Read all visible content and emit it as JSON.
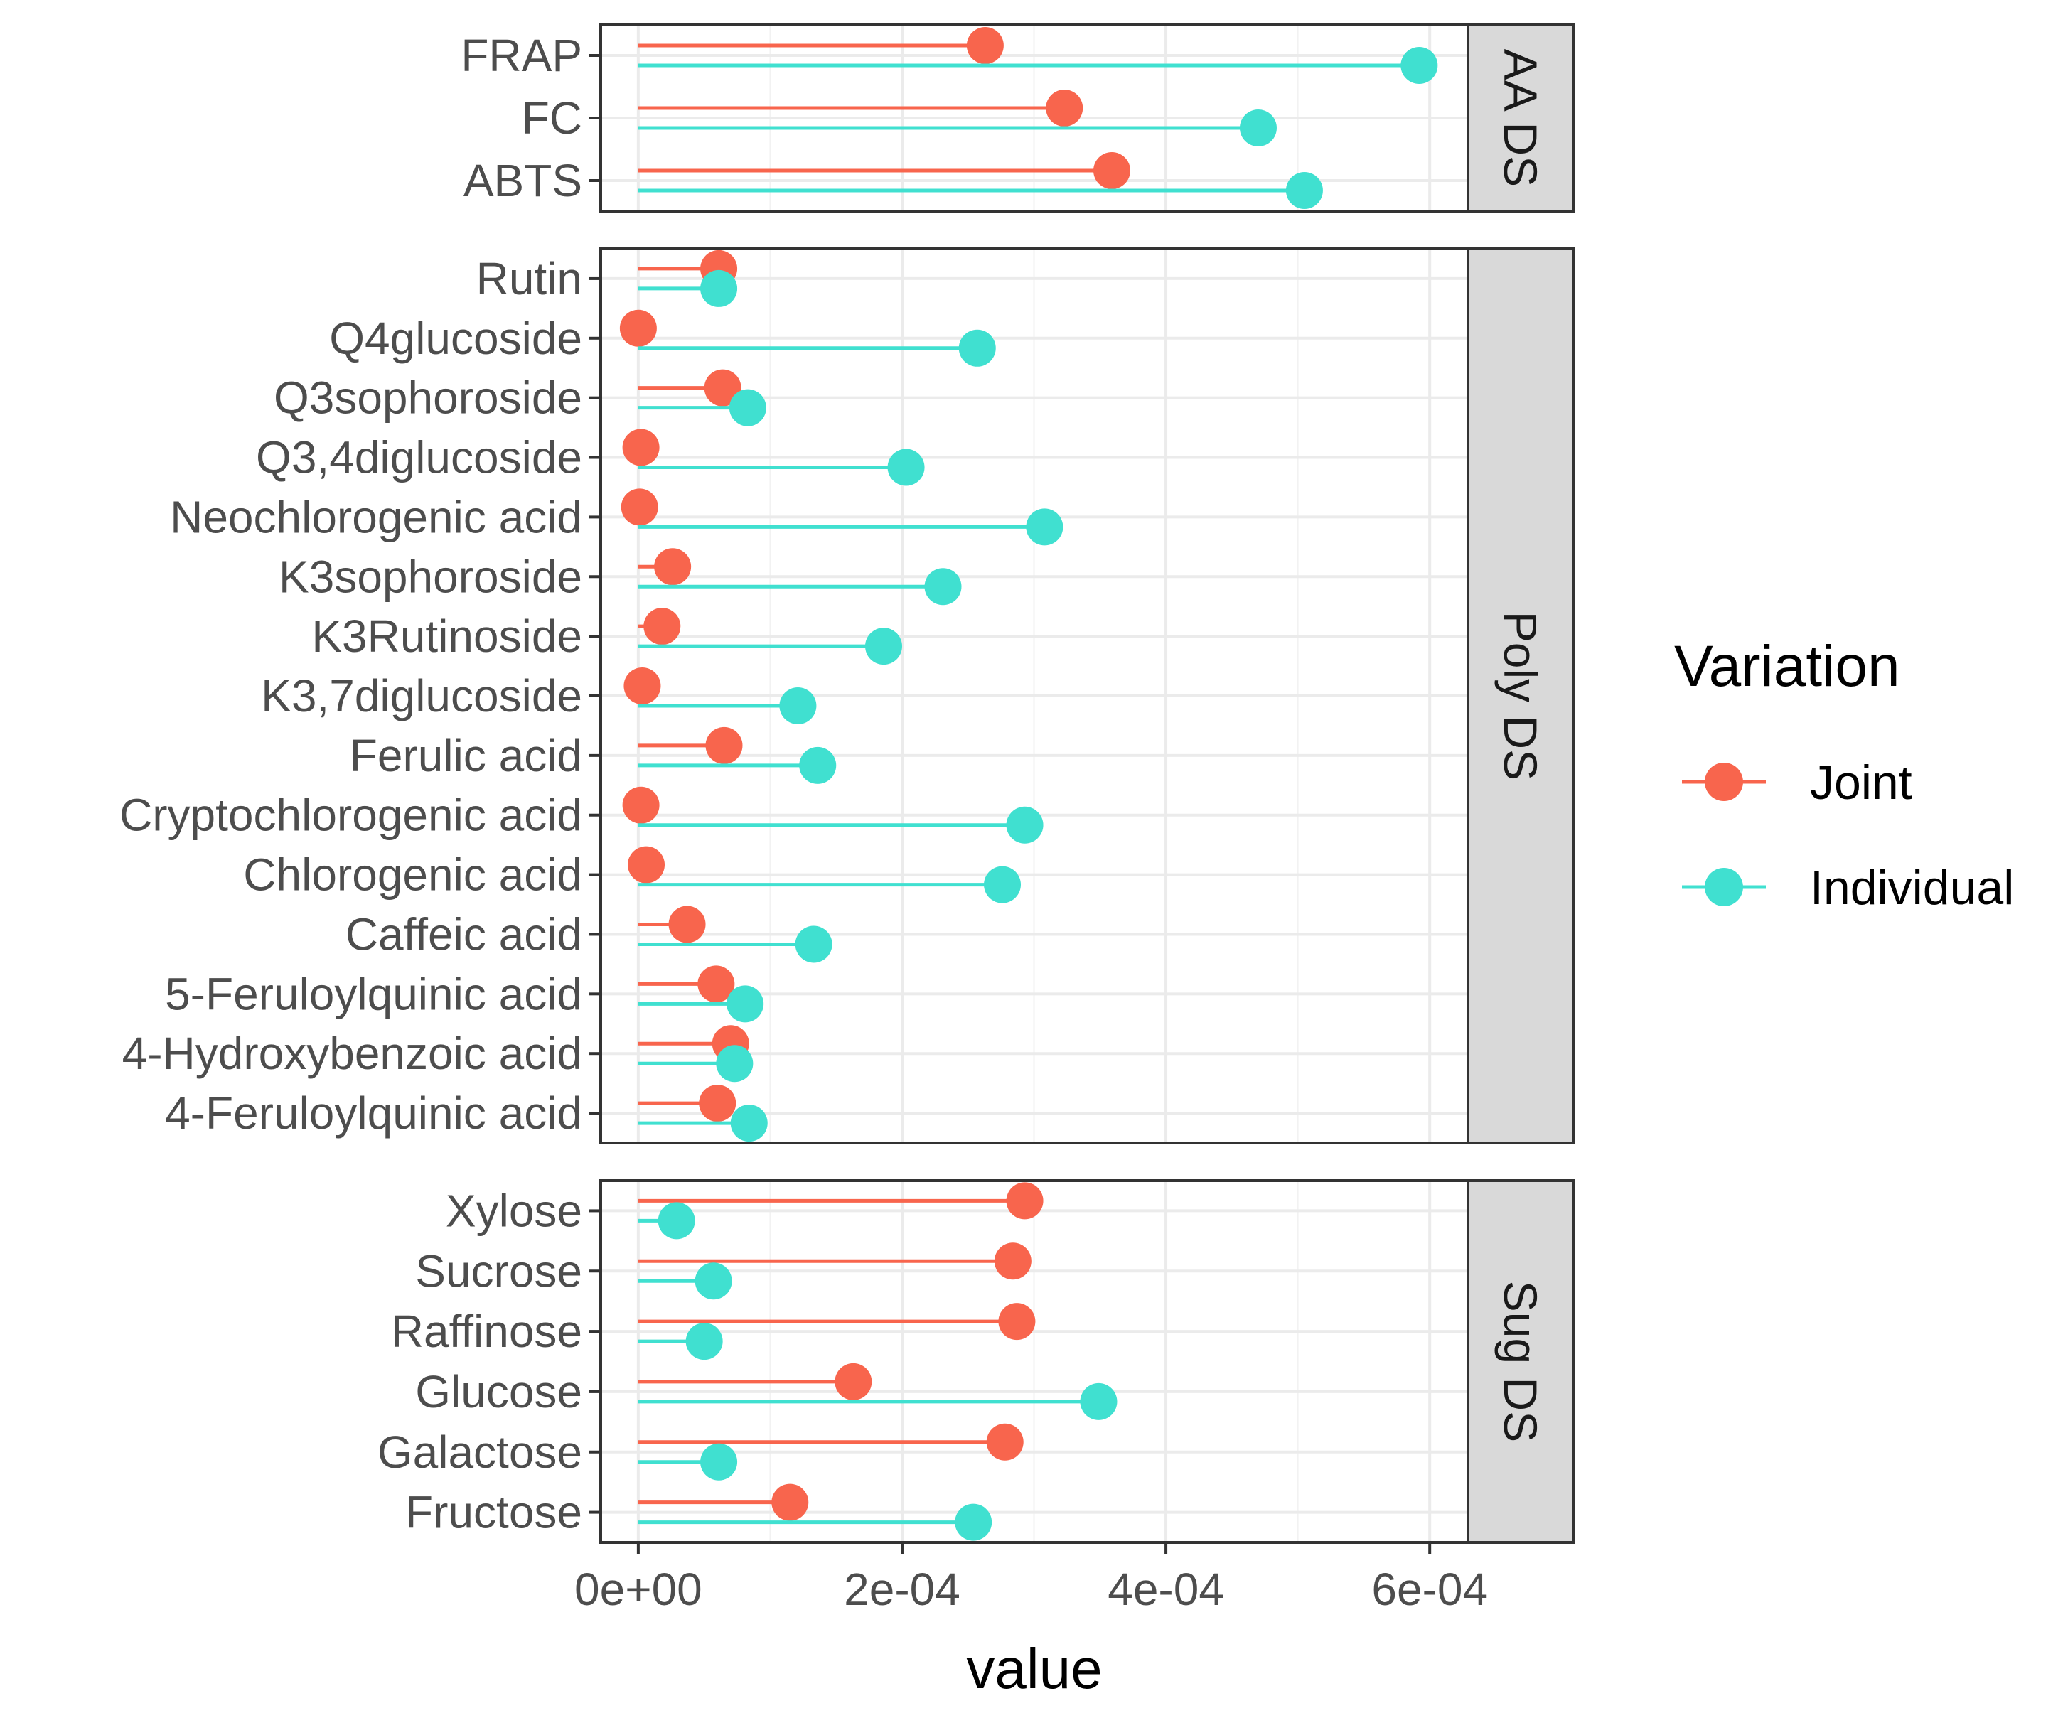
{
  "chart_data": {
    "type": "lollipop",
    "xlabel": "value",
    "ylabel": "",
    "xlim": [
      -2.85e-05,
      0.000629
    ],
    "x_ticks": [
      0,
      0.0002,
      0.0004,
      0.0006
    ],
    "x_tick_labels": [
      "0e+00",
      "2e-04",
      "4e-04",
      "6e-04"
    ],
    "grid": true,
    "legend": {
      "title": "Variation",
      "position": "right",
      "entries": [
        {
          "name": "Joint",
          "color": "#F8654D"
        },
        {
          "name": "Individual",
          "color": "#40E0D0"
        }
      ]
    },
    "facets": [
      {
        "label": "AA DS",
        "categories": [
          "FRAP",
          "FC",
          "ABTS"
        ],
        "series": [
          {
            "name": "Joint",
            "values": [
              0.000263,
              0.000323,
              0.000359
            ]
          },
          {
            "name": "Individual",
            "values": [
              0.000592,
              0.00047,
              0.000505
            ]
          }
        ]
      },
      {
        "label": "Poly DS",
        "categories": [
          "Rutin",
          "Q4glucoside",
          "Q3sophoroside",
          "Q3,4diglucoside",
          "Neochlorogenic acid",
          "K3sophoroside",
          "K3Rutinoside",
          "K3,7diglucoside",
          "Ferulic acid",
          "Cryptochlorogenic acid",
          "Chlorogenic acid",
          "Caffeic acid",
          "5-Feruloylquinic acid",
          "4-Hydroxybenzoic acid",
          "4-Feruloylquinic acid"
        ],
        "series": [
          {
            "name": "Joint",
            "values": [
              6.1e-05,
              0.0,
              6.4e-05,
              2e-06,
              1e-06,
              2.6e-05,
              1.8e-05,
              3e-06,
              6.5e-05,
              2e-06,
              6e-06,
              3.7e-05,
              5.9e-05,
              7e-05,
              6e-05
            ]
          },
          {
            "name": "Individual",
            "values": [
              6.1e-05,
              0.000257,
              8.3e-05,
              0.000203,
              0.000308,
              0.000231,
              0.000186,
              0.000121,
              0.000136,
              0.000293,
              0.000276,
              0.000133,
              8.1e-05,
              7.3e-05,
              8.4e-05
            ]
          }
        ]
      },
      {
        "label": "Sug DS",
        "categories": [
          "Xylose",
          "Sucrose",
          "Raffinose",
          "Glucose",
          "Galactose",
          "Fructose"
        ],
        "series": [
          {
            "name": "Joint",
            "values": [
              0.000293,
              0.000284,
              0.000287,
              0.000163,
              0.000278,
              0.000115
            ]
          },
          {
            "name": "Individual",
            "values": [
              2.9e-05,
              5.7e-05,
              5e-05,
              0.000349,
              6.1e-05,
              0.000254
            ]
          }
        ]
      }
    ]
  }
}
